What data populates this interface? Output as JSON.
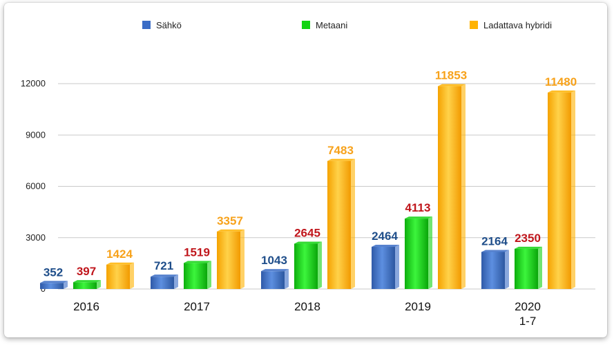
{
  "chart_data": {
    "type": "bar",
    "categories": [
      [
        "2016"
      ],
      [
        "2017"
      ],
      [
        "2018"
      ],
      [
        "2019"
      ],
      [
        "2020",
        "1-7"
      ]
    ],
    "series": [
      {
        "name": "Sähkö",
        "color": "#3a6cc6",
        "values": [
          352,
          721,
          1043,
          2464,
          2164
        ],
        "label_color": "#1f4e8a"
      },
      {
        "name": "Metaani",
        "color": "#12d412",
        "values": [
          397,
          1519,
          2645,
          4113,
          2350
        ],
        "label_color": "#c0161c"
      },
      {
        "name": "Ladattava hybridi",
        "color": "#ffb300",
        "values": [
          1424,
          3357,
          7483,
          11853,
          11480
        ],
        "label_color": "#f7a21b"
      }
    ],
    "yticks": [
      0,
      3000,
      6000,
      9000,
      12000
    ],
    "ylim": [
      0,
      12000
    ],
    "title": "",
    "xlabel": "",
    "ylabel": ""
  }
}
